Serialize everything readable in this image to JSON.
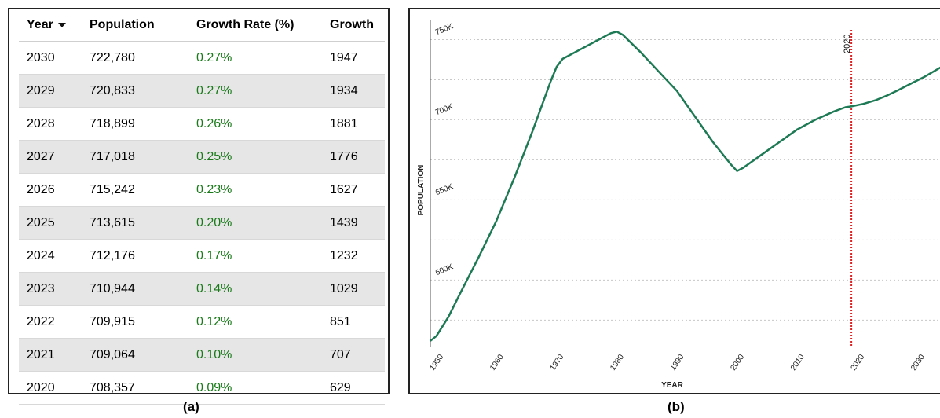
{
  "table": {
    "headers": {
      "year": "Year",
      "population": "Population",
      "rate": "Growth Rate (%)",
      "growth": "Growth"
    },
    "rows": [
      {
        "year": "2030",
        "population": "722,780",
        "rate": "0.27%",
        "growth": "1947"
      },
      {
        "year": "2029",
        "population": "720,833",
        "rate": "0.27%",
        "growth": "1934"
      },
      {
        "year": "2028",
        "population": "718,899",
        "rate": "0.26%",
        "growth": "1881"
      },
      {
        "year": "2027",
        "population": "717,018",
        "rate": "0.25%",
        "growth": "1776"
      },
      {
        "year": "2026",
        "population": "715,242",
        "rate": "0.23%",
        "growth": "1627"
      },
      {
        "year": "2025",
        "population": "713,615",
        "rate": "0.20%",
        "growth": "1439"
      },
      {
        "year": "2024",
        "population": "712,176",
        "rate": "0.17%",
        "growth": "1232"
      },
      {
        "year": "2023",
        "population": "710,944",
        "rate": "0.14%",
        "growth": "1029"
      },
      {
        "year": "2022",
        "population": "709,915",
        "rate": "0.12%",
        "growth": "851"
      },
      {
        "year": "2021",
        "population": "709,064",
        "rate": "0.10%",
        "growth": "707"
      },
      {
        "year": "2020",
        "population": "708,357",
        "rate": "0.09%",
        "growth": "629"
      }
    ]
  },
  "captions": {
    "a": "(a)",
    "b": "(b)"
  },
  "colors": {
    "line": "#1e7a55",
    "marker": "#e02020",
    "rate_text": "#1a7a1a",
    "alt_row": "#e6e6e6",
    "grid": "#c8c8c8"
  },
  "chart_data": {
    "type": "line",
    "title": "",
    "xlabel": "YEAR",
    "ylabel": "POPULATION",
    "xlim": [
      1950,
      2035
    ],
    "ylim": [
      558000,
      762000
    ],
    "x_ticks": [
      1950,
      1960,
      1970,
      1980,
      1990,
      2000,
      2010,
      2020,
      2030
    ],
    "x_tick_labels": [
      "1950",
      "1960",
      "1970",
      "1980",
      "1990",
      "2000",
      "2010",
      "2020",
      "2030"
    ],
    "y_ticks": [
      600000,
      650000,
      700000,
      750000
    ],
    "y_tick_labels": [
      "600K",
      "650K",
      "700K",
      "750K"
    ],
    "grid": true,
    "series": [
      {
        "x": [
          1950,
          1951,
          1953,
          1955,
          1958,
          1961,
          1964,
          1967,
          1970,
          1971,
          1972,
          1975,
          1978,
          1980,
          1981,
          1982,
          1985,
          1988,
          1991,
          1994,
          1997,
          2000,
          2001,
          2002,
          2005,
          2008,
          2011,
          2014,
          2017,
          2019,
          2020,
          2022,
          2024,
          2026,
          2028,
          2030,
          2032,
          2035
        ],
        "y": [
          562000,
          565000,
          577000,
          592000,
          614000,
          637000,
          664000,
          693000,
          724000,
          733000,
          738000,
          744000,
          750000,
          754000,
          755000,
          753000,
          742000,
          730000,
          718000,
          702000,
          686000,
          672000,
          668000,
          670000,
          678000,
          686000,
          694000,
          700000,
          705000,
          707800,
          708357,
          709915,
          712176,
          715242,
          718899,
          722780,
          726500,
          733000
        ]
      }
    ],
    "annotations": [
      {
        "type": "vline",
        "x": 2020,
        "label": "2020"
      }
    ]
  }
}
